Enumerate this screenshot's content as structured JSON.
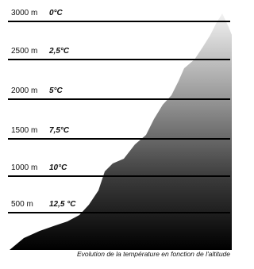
{
  "levels": [
    {
      "altitude": "3000 m",
      "temperature": "0°C"
    },
    {
      "altitude": "2500 m",
      "temperature": "2,5°C"
    },
    {
      "altitude": "2000 m",
      "temperature": "5°C"
    },
    {
      "altitude": "1500 m",
      "temperature": "7,5°C"
    },
    {
      "altitude": "1000 m",
      "temperature": "10°C"
    },
    {
      "altitude": "500 m",
      "temperature": "12,5 °C"
    }
  ],
  "caption": "Evolution de la température en fonction de l'altitude"
}
